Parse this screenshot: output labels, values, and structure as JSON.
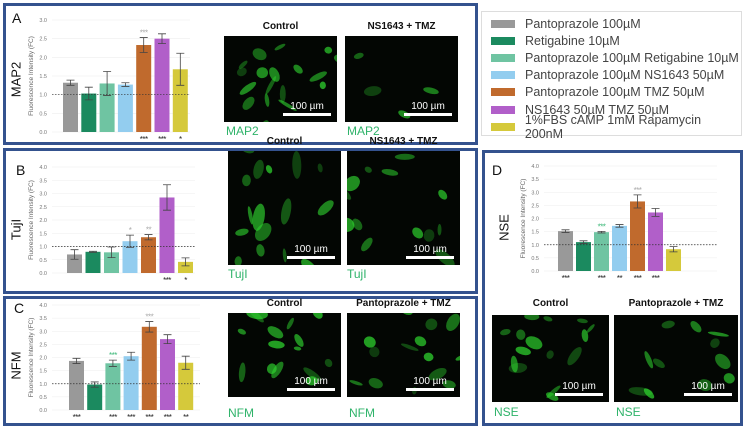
{
  "legend": [
    {
      "label": "Pantoprazole 100µM",
      "color": "#999999"
    },
    {
      "label": "Retigabine 10µM",
      "color": "#1b8a5f"
    },
    {
      "label": "Pantoprazole 100µM Retigabine 10µM",
      "color": "#6fc4a2"
    },
    {
      "label": "Pantoprazole 100µM NS1643 50µM",
      "color": "#93cdef"
    },
    {
      "label": "Pantoprazole 100µM TMZ 50µM",
      "color": "#c06a2d"
    },
    {
      "label": "NS1643 50µM TMZ 50µM",
      "color": "#b15fc9"
    },
    {
      "label": "1%FBS cAMP 1mM Rapamycin 200nM",
      "color": "#d5c93b"
    }
  ],
  "scale_label": "100 µm",
  "panels": {
    "A": {
      "letter": "A",
      "marker": "MAP2",
      "img_titles": [
        "Control",
        "NS1643 + TMZ"
      ],
      "captions": [
        "MAP2",
        "MAP2"
      ]
    },
    "B": {
      "letter": "B",
      "marker": "TujI",
      "img_titles": [
        "Control",
        "NS1643 + TMZ"
      ],
      "captions": [
        "TujI",
        "TujI"
      ]
    },
    "C": {
      "letter": "C",
      "marker": "NFM",
      "img_titles": [
        "Control",
        "Pantoprazole + TMZ"
      ],
      "captions": [
        "NFM",
        "NFM"
      ]
    },
    "D": {
      "letter": "D",
      "marker": "NSE",
      "img_titles": [
        "Control",
        "Pantoprazole + TMZ"
      ],
      "captions": [
        "NSE",
        "NSE"
      ]
    }
  },
  "chart_data": [
    {
      "panel": "A",
      "type": "bar",
      "ylabel": "Fluorescence Intensity (FC)",
      "ylim": [
        0,
        3.0
      ],
      "yticks": [
        "0.0",
        "0.5",
        "1.0",
        "1.5",
        "2.0",
        "2.5",
        "3.0"
      ],
      "reference_line": 1.0,
      "values": [
        1.32,
        1.03,
        1.3,
        1.27,
        2.33,
        2.5,
        1.68
      ],
      "errors": [
        0.07,
        0.17,
        0.32,
        0.05,
        0.2,
        0.13,
        0.43
      ],
      "sig_top": [
        "",
        "",
        "",
        "",
        "***",
        "",
        ""
      ],
      "sig_top_colors": [
        "",
        "",
        "",
        "",
        "#aaaaaa",
        "",
        ""
      ],
      "sig_bottom": [
        "",
        "",
        "",
        "",
        "***",
        "***",
        "*"
      ]
    },
    {
      "panel": "B",
      "type": "bar",
      "ylabel": "Fluorescence Intensity (FC)",
      "ylim": [
        0,
        4.0
      ],
      "yticks": [
        "0.0",
        "0.5",
        "1.0",
        "1.5",
        "2.0",
        "2.5",
        "3.0",
        "3.5",
        "4.0"
      ],
      "reference_line": 1.0,
      "values": [
        0.7,
        0.8,
        0.78,
        1.2,
        1.35,
        2.85,
        0.42
      ],
      "errors": [
        0.18,
        0.02,
        0.2,
        0.23,
        0.1,
        0.48,
        0.15
      ],
      "sig_top": [
        "",
        "",
        "",
        "*",
        "**",
        "",
        ""
      ],
      "sig_top_colors": [
        "",
        "",
        "",
        "#aaaaaa",
        "#aaaaaa",
        "",
        ""
      ],
      "sig_bottom": [
        "",
        "",
        "",
        "",
        "",
        "***",
        "*"
      ]
    },
    {
      "panel": "C",
      "type": "bar",
      "ylabel": "Fluorescence Intensity (FC)",
      "ylim": [
        0,
        4.0
      ],
      "yticks": [
        "0.0",
        "0.5",
        "1.0",
        "1.5",
        "2.0",
        "2.5",
        "3.0",
        "3.5",
        "4.0"
      ],
      "reference_line": 1.0,
      "values": [
        1.87,
        0.97,
        1.78,
        2.05,
        3.17,
        2.7,
        1.8
      ],
      "errors": [
        0.1,
        0.1,
        0.12,
        0.15,
        0.2,
        0.17,
        0.25
      ],
      "sig_top": [
        "",
        "",
        "***",
        "",
        "***",
        "",
        ""
      ],
      "sig_top_colors": [
        "",
        "",
        "#3cb878",
        "",
        "#aaaaaa",
        "",
        ""
      ],
      "sig_bottom": [
        "***",
        "",
        "***",
        "***",
        "***",
        "***",
        "**"
      ]
    },
    {
      "panel": "D",
      "type": "bar",
      "ylabel": "Fluorescence Intensity (FC)",
      "ylim": [
        0,
        4.0
      ],
      "yticks": [
        "0.0",
        "0.5",
        "1.0",
        "1.5",
        "2.0",
        "2.5",
        "3.0",
        "3.5",
        "4.0"
      ],
      "reference_line": 1.0,
      "values": [
        1.52,
        1.1,
        1.48,
        1.72,
        2.65,
        2.23,
        0.83
      ],
      "errors": [
        0.05,
        0.05,
        0.03,
        0.05,
        0.25,
        0.15,
        0.1
      ],
      "sig_top": [
        "",
        "",
        "***",
        "",
        "***",
        "",
        ""
      ],
      "sig_top_colors": [
        "",
        "",
        "#3cb878",
        "",
        "#aaaaaa",
        "",
        ""
      ],
      "sig_bottom": [
        "***",
        "",
        "***",
        "**",
        "***",
        "***",
        ""
      ]
    }
  ]
}
